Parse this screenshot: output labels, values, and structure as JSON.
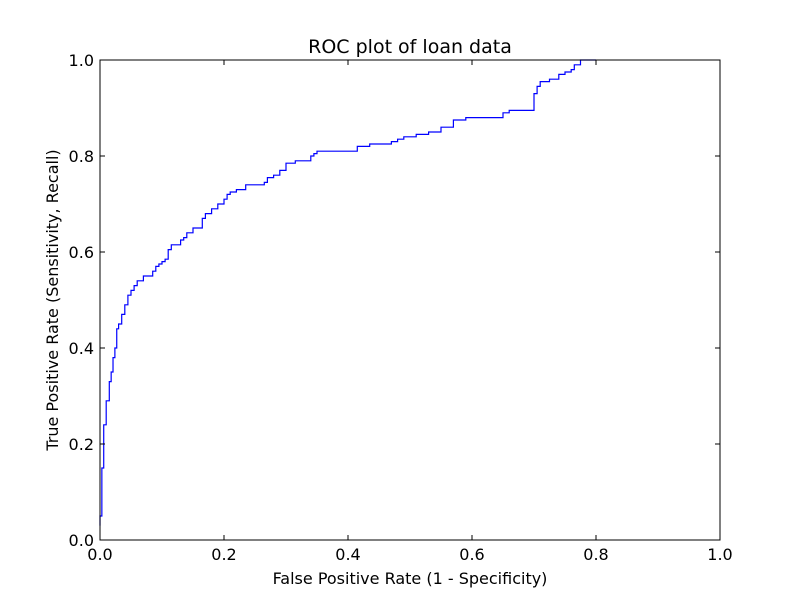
{
  "chart_data": {
    "type": "line",
    "title": "ROC plot of loan data",
    "xlabel": "False Positive Rate (1 - Specificity)",
    "ylabel": "True Positive Rate (Sensitivity, Recall)",
    "xlim": [
      0.0,
      1.0
    ],
    "ylim": [
      0.0,
      1.0
    ],
    "x_ticks": [
      "0.0",
      "0.2",
      "0.4",
      "0.6",
      "0.8",
      "1.0"
    ],
    "y_ticks": [
      "0.0",
      "0.2",
      "0.4",
      "0.6",
      "0.8",
      "1.0"
    ],
    "grid": false,
    "legend": "none",
    "series": [
      {
        "color": "#0000ff",
        "x": [
          0.0,
          0.0,
          0.003,
          0.003,
          0.006,
          0.006,
          0.01,
          0.01,
          0.015,
          0.015,
          0.018,
          0.018,
          0.021,
          0.021,
          0.024,
          0.024,
          0.027,
          0.027,
          0.03,
          0.03,
          0.035,
          0.035,
          0.04,
          0.04,
          0.045,
          0.045,
          0.05,
          0.05,
          0.055,
          0.055,
          0.06,
          0.06,
          0.07,
          0.07,
          0.085,
          0.085,
          0.09,
          0.09,
          0.095,
          0.095,
          0.1,
          0.1,
          0.105,
          0.105,
          0.11,
          0.11,
          0.115,
          0.115,
          0.13,
          0.13,
          0.135,
          0.135,
          0.14,
          0.14,
          0.15,
          0.15,
          0.165,
          0.165,
          0.17,
          0.17,
          0.18,
          0.18,
          0.19,
          0.19,
          0.2,
          0.2,
          0.205,
          0.205,
          0.21,
          0.21,
          0.22,
          0.22,
          0.235,
          0.235,
          0.265,
          0.265,
          0.27,
          0.27,
          0.28,
          0.28,
          0.29,
          0.29,
          0.3,
          0.3,
          0.315,
          0.315,
          0.34,
          0.34,
          0.345,
          0.345,
          0.35,
          0.35,
          0.415,
          0.415,
          0.435,
          0.435,
          0.47,
          0.47,
          0.48,
          0.48,
          0.49,
          0.49,
          0.51,
          0.51,
          0.53,
          0.53,
          0.55,
          0.55,
          0.57,
          0.57,
          0.59,
          0.59,
          0.65,
          0.65,
          0.66,
          0.66,
          0.7,
          0.7,
          0.705,
          0.705,
          0.71,
          0.71,
          0.725,
          0.725,
          0.74,
          0.74,
          0.75,
          0.75,
          0.76,
          0.76,
          0.765,
          0.765,
          0.775,
          0.775,
          0.8
        ],
        "y": [
          0.03,
          0.05,
          0.05,
          0.15,
          0.15,
          0.24,
          0.24,
          0.29,
          0.29,
          0.33,
          0.33,
          0.35,
          0.35,
          0.38,
          0.38,
          0.4,
          0.4,
          0.44,
          0.44,
          0.45,
          0.45,
          0.47,
          0.47,
          0.49,
          0.49,
          0.51,
          0.51,
          0.52,
          0.52,
          0.53,
          0.53,
          0.54,
          0.54,
          0.55,
          0.55,
          0.56,
          0.56,
          0.57,
          0.57,
          0.575,
          0.575,
          0.58,
          0.58,
          0.585,
          0.585,
          0.605,
          0.605,
          0.615,
          0.615,
          0.625,
          0.625,
          0.63,
          0.63,
          0.64,
          0.64,
          0.65,
          0.65,
          0.67,
          0.67,
          0.68,
          0.68,
          0.69,
          0.69,
          0.7,
          0.7,
          0.71,
          0.71,
          0.72,
          0.72,
          0.725,
          0.725,
          0.73,
          0.73,
          0.74,
          0.74,
          0.745,
          0.745,
          0.755,
          0.755,
          0.76,
          0.76,
          0.77,
          0.77,
          0.785,
          0.785,
          0.79,
          0.79,
          0.8,
          0.8,
          0.805,
          0.805,
          0.81,
          0.81,
          0.82,
          0.82,
          0.825,
          0.825,
          0.83,
          0.83,
          0.835,
          0.835,
          0.84,
          0.84,
          0.845,
          0.845,
          0.85,
          0.85,
          0.86,
          0.86,
          0.875,
          0.875,
          0.88,
          0.88,
          0.89,
          0.89,
          0.895,
          0.895,
          0.93,
          0.93,
          0.945,
          0.945,
          0.955,
          0.955,
          0.96,
          0.96,
          0.97,
          0.97,
          0.975,
          0.975,
          0.98,
          0.98,
          0.99,
          0.99,
          1.0,
          1.0
        ]
      }
    ]
  }
}
